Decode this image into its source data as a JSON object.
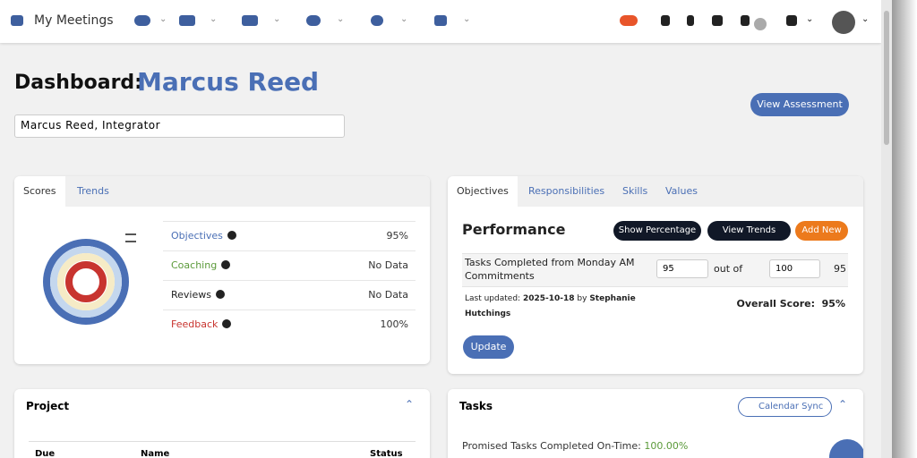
{
  "nav": {
    "title": "My Meetings"
  },
  "header": {
    "label": "Dashboard:",
    "name": "Marcus Reed",
    "select": "Marcus Reed, Integrator",
    "button": "View Assessment"
  },
  "scores": {
    "tabs": [
      "Scores",
      "Trends"
    ],
    "rows": [
      {
        "label": "Objectives",
        "value": "95%"
      },
      {
        "label": "Coaching",
        "value": "No Data"
      },
      {
        "label": "Reviews",
        "value": "No Data"
      },
      {
        "label": "Feedback",
        "value": "100%"
      }
    ]
  },
  "performance": {
    "tabs": [
      "Objectives",
      "Responsibilities",
      "Skills",
      "Values"
    ],
    "title": "Performance",
    "buttons": [
      "Show Percentage",
      "View Trends",
      "Add New"
    ],
    "task": "Tasks Completed from Monday AM Commitments",
    "done": "95",
    "out_of": "out of",
    "total": "100",
    "score": "95",
    "updated_label": "Last updated:",
    "updated_date": "2025-10-18",
    "by": "by",
    "updated_by": "Stephanie Hutchings",
    "overall_label": "Overall Score:",
    "overall_value": "95%",
    "update": "Update"
  },
  "project": {
    "title": "Project",
    "columns": [
      "Due",
      "Name",
      "Status"
    ]
  },
  "tasks": {
    "title": "Tasks",
    "calendar": "Calendar Sync",
    "promised_label": "Promised Tasks Completed On-Time:",
    "promised_value": "100.00%"
  }
}
